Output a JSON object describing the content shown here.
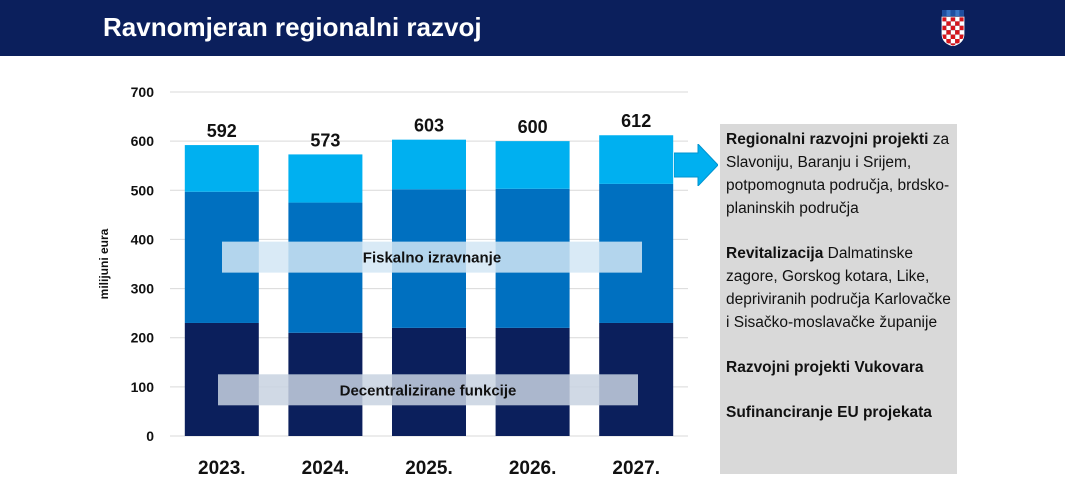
{
  "header": {
    "title": "Ravnomjeran regionalni razvoj"
  },
  "chart_data": {
    "type": "bar",
    "stacked": true,
    "categories": [
      "2023.",
      "2024.",
      "2025.",
      "2026.",
      "2027."
    ],
    "series": [
      {
        "name": "Decentralizirane funkcije",
        "values": [
          230,
          210,
          220,
          220,
          230
        ],
        "color": "#0b1f5c"
      },
      {
        "name": "Fiskalno izravnanje",
        "values": [
          267,
          265,
          282,
          283,
          283
        ],
        "color": "#0070c0"
      },
      {
        "name": "",
        "values": [
          95,
          98,
          101,
          97,
          99
        ],
        "color": "#00b0f0"
      }
    ],
    "totals": [
      592,
      573,
      603,
      600,
      612
    ],
    "ylabel": "milijuni eura",
    "xlabel": "",
    "ylim": [
      0,
      700
    ],
    "yticks": [
      0,
      100,
      200,
      300,
      400,
      500,
      600,
      700
    ],
    "grid": true,
    "annotations": [
      {
        "text": "Fiskalno izravnanje",
        "y": 365
      },
      {
        "text": "Decentralizirane funkcije",
        "y": 95
      }
    ]
  },
  "info": {
    "items": [
      {
        "bold": "Regionalni razvojni projekti",
        "text": " za Slavoniju, Baranju i Srijem, potpomognuta područja, brdsko-planinskih područja"
      },
      {
        "bold": "Revitalizacija",
        "text": " Dalmatinske zagore, Gorskog kotara, Like, depriviranih područja Karlovačke i Sisačko-moslavačke županije"
      },
      {
        "bold": "Razvojni projekti Vukovara",
        "text": ""
      },
      {
        "bold": "Sufinanciranje EU projekata",
        "text": ""
      }
    ]
  },
  "colors": {
    "header_bg": "#0b1f5c",
    "arrow": "#00b0f0",
    "box_bg": "#d9d9d9"
  }
}
